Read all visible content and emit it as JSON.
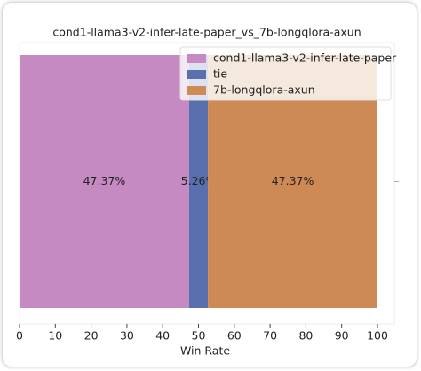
{
  "chart_data": {
    "type": "stacked-bar-horizontal",
    "title": "cond1-llama3-v2-infer-late-paper_vs_7b-longqlora-axun",
    "x_label": "Win Rate",
    "series": [
      {
        "name": "cond1-llama3-v2-infer-late-paper",
        "color": "#c68ac2",
        "values": [
          47.37
        ],
        "value_labels": [
          "47.37%"
        ]
      },
      {
        "name": "tie",
        "color": "#5a6fae",
        "values": [
          5.26
        ],
        "value_labels": [
          "5.26%"
        ]
      },
      {
        "name": "7b-longqlora-axun",
        "color": "#cd8a55",
        "values": [
          47.37
        ],
        "value_labels": [
          "47.37%"
        ]
      }
    ],
    "xlim": [
      0,
      100
    ],
    "xticks": [
      0,
      10,
      20,
      30,
      40,
      50,
      60,
      70,
      80,
      90,
      100
    ],
    "legend": "upper right"
  }
}
